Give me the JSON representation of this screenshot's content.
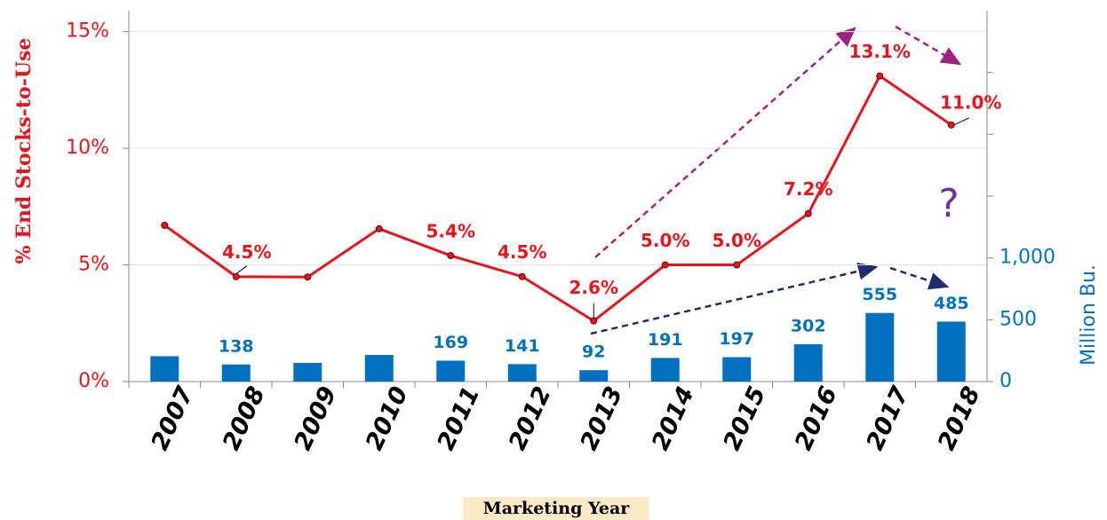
{
  "chart_data": {
    "type": "bar_line",
    "categories": [
      "2007",
      "2008",
      "2009",
      "2010",
      "2011",
      "2012",
      "2013",
      "2014",
      "2015",
      "2016",
      "2017",
      "2018"
    ],
    "series": [
      {
        "name": "% End Stocks-to-Use",
        "type": "line",
        "color": "#e8141b",
        "axis": "y",
        "values": [
          6.7,
          4.5,
          4.48,
          6.55,
          5.4,
          4.5,
          2.6,
          5.0,
          5.0,
          7.2,
          13.1,
          11.0
        ],
        "value_labels": [
          null,
          "4.5%",
          null,
          null,
          "5.4%",
          "4.5%",
          "2.6%",
          "5.0%",
          "5.0%",
          "7.2%",
          "13.1%",
          "11.0%"
        ]
      },
      {
        "name": "Million Bu.",
        "type": "bar",
        "color": "#0070c0",
        "axis": "y2",
        "values": [
          205,
          138,
          151,
          215,
          169,
          141,
          92,
          191,
          197,
          302,
          555,
          485
        ],
        "value_labels": [
          null,
          "138",
          null,
          null,
          "169",
          "141",
          "92",
          "191",
          "197",
          "302",
          "555",
          "485"
        ]
      }
    ],
    "y_label": "% End Stocks-to-Use",
    "y2_label": "Million Bu.",
    "x_label": "Marketing Year",
    "annotation": "?",
    "ylim": [
      0,
      15.9
    ],
    "yticks": [
      {
        "value": 0,
        "label": "0%"
      },
      {
        "value": 5,
        "label": "5%"
      },
      {
        "value": 10,
        "label": "10%"
      },
      {
        "value": 15,
        "label": "15%"
      }
    ],
    "y2lim": [
      0,
      3000
    ],
    "y2ticks": [
      0,
      500,
      {
        "value": 1000,
        "label": "1,000"
      }
    ],
    "y2ticks_minor": [
      1500,
      2000,
      2500
    ],
    "grid": true
  }
}
